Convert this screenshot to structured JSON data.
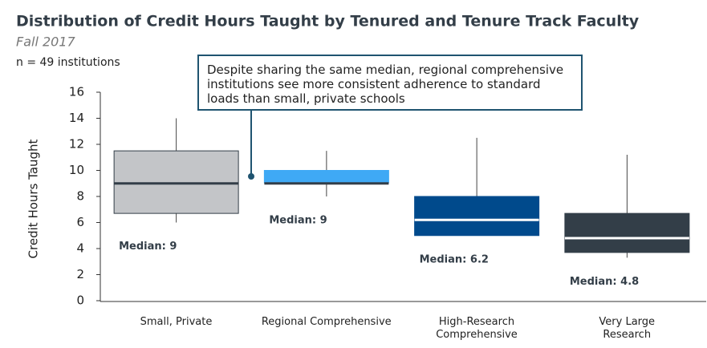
{
  "chart_data": {
    "type": "box",
    "title": "Distribution of Credit Hours Taught by Tenured and Tenure Track Faculty",
    "subtitle": "Fall 2017",
    "note": "n = 49 institutions",
    "y_label": "Credit Hours Taught",
    "annotation": "Despite sharing the same median, regional comprehensive institutions see more consistent adherence to standard loads than small, private schools",
    "categories": [
      "Small, Private",
      "Regional Comprehensive",
      "High-Research\nComprehensive",
      "Very Large\nResearch"
    ],
    "min": [
      6,
      8,
      5,
      3.3
    ],
    "q1": [
      6.7,
      9.05,
      5,
      3.7
    ],
    "median": [
      9,
      9,
      6.2,
      4.8
    ],
    "q3": [
      11.5,
      10,
      8,
      6.7
    ],
    "max": [
      14,
      11.5,
      12.5,
      11.2
    ],
    "median_labels": [
      "Median: 9",
      "Median: 9",
      "Median: 6.2",
      "Median: 4.8"
    ],
    "colors": [
      "#c3c5c8",
      "#3fa9f5",
      "#004a8c",
      "#333e48"
    ],
    "median_colors": [
      "#333e48",
      "#333e48",
      "#ffffff",
      "#ffffff"
    ],
    "ylim": [
      0,
      16
    ],
    "yticks": [
      0,
      2,
      4,
      6,
      8,
      10,
      12,
      14,
      16
    ]
  }
}
